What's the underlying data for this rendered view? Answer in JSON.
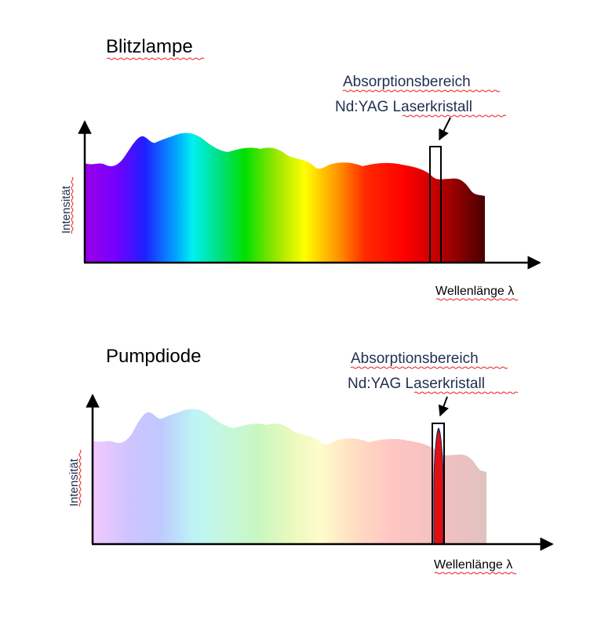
{
  "panels": [
    {
      "title": "Blitzlampe",
      "annotation_line1": "Absorptionsbereich",
      "annotation_line2": "Nd:YAG Laserkristall",
      "ylabel": "Intensität",
      "xlabel": "Wellenlänge λ",
      "spectrum": "broadband continuous (violet to deep red)",
      "absorption_emphasis": "band outlined over spectrum"
    },
    {
      "title": "Pumpdiode",
      "annotation_line1": "Absorptionsbereich",
      "annotation_line2": "Nd:YAG Laserkristall",
      "ylabel": "Intensität",
      "xlabel": "Wellenlänge λ",
      "spectrum": "faded broadband background",
      "absorption_emphasis": "narrow emission peak inside absorption band"
    }
  ],
  "colors": {
    "annotation_text": "#1f2f4f",
    "peak": "#e01010",
    "axis": "#000000"
  }
}
